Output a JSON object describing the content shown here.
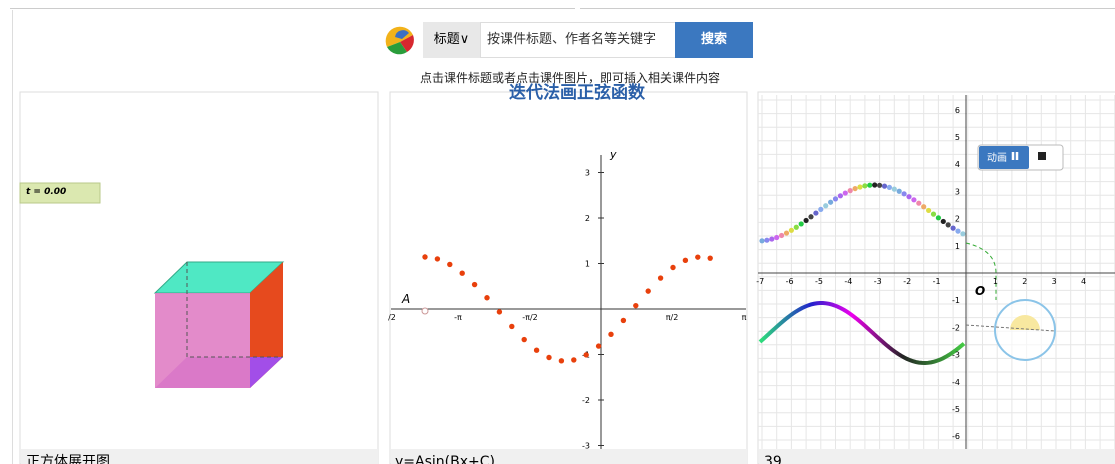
{
  "search": {
    "scope": "标题∨",
    "placeholder": "按课件标题、作者名等关键字",
    "button": "搜索",
    "hint": "点击课件标题或者点击课件图片，即可插入相关课件内容"
  },
  "cards": [
    {
      "title": "正方体展开图",
      "slider_label": "t = 0.00"
    },
    {
      "title": "y=Asin(Bx+C)",
      "heading": "迭代法画正弦函数",
      "axis_label": "y",
      "point_label": "A",
      "yticks": [
        3,
        2,
        1,
        -1,
        -2,
        -3
      ],
      "xticks": [
        "/2",
        "-π",
        "-π/2",
        "π/2",
        "π"
      ]
    },
    {
      "title": "39",
      "button": "动画",
      "origin": "O",
      "yticks": [
        6,
        5,
        4,
        3,
        2,
        1,
        -1,
        -2,
        -3,
        -4,
        -5,
        -6
      ],
      "xticks": [
        -7,
        -6,
        -5,
        -4,
        -3,
        -2,
        -1,
        1,
        2,
        3,
        4
      ]
    }
  ]
}
